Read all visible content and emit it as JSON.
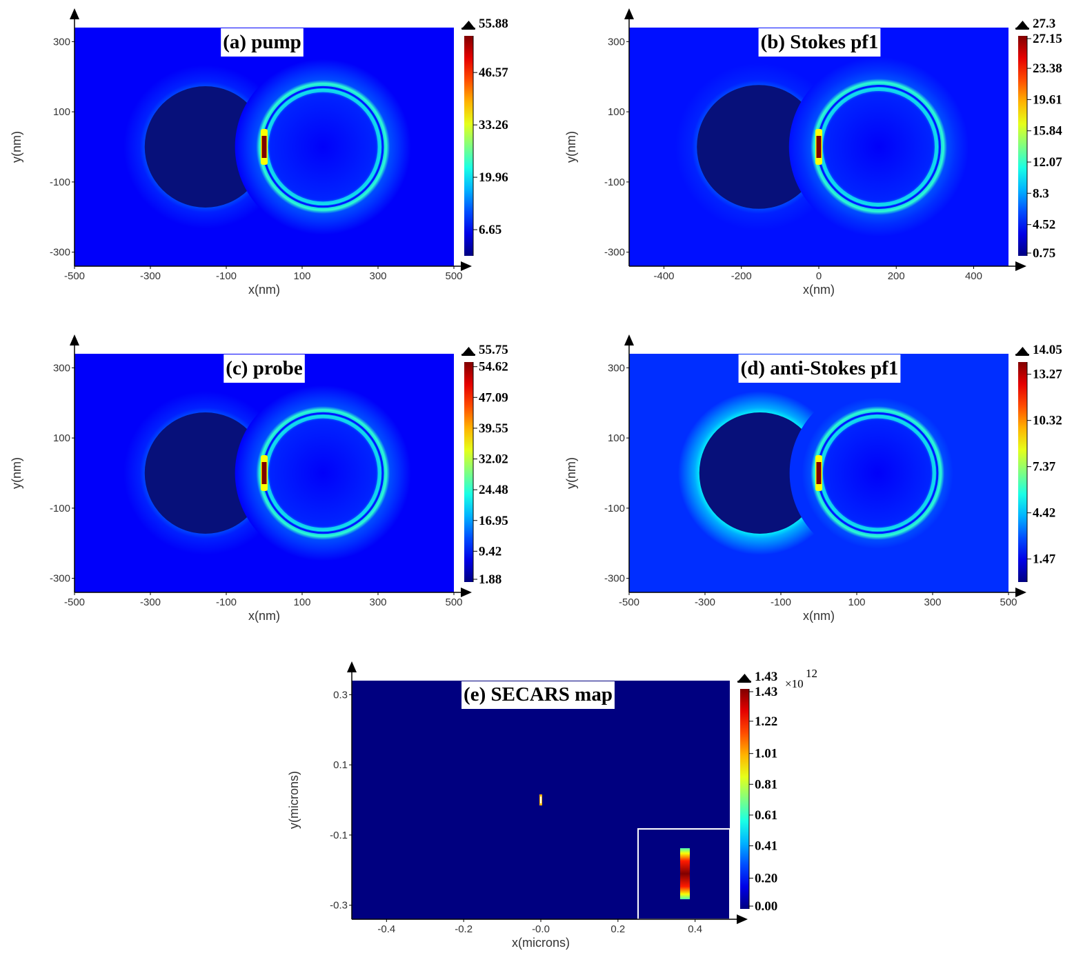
{
  "chart_data": [
    {
      "type": "heatmap",
      "title": "(a) pump",
      "xlabel": "x(nm)",
      "ylabel": "y(nm)",
      "x_ticks": [
        "-500",
        "-300",
        "-100",
        "100",
        "300",
        "500"
      ],
      "y_ticks": [
        "300",
        "100",
        "-100",
        "-300"
      ],
      "xlim": [
        -500,
        500
      ],
      "ylim": [
        -340,
        340
      ],
      "colorbar": {
        "max_label": "55.88",
        "ticks": [
          "46.57",
          "33.26",
          "19.96",
          "6.65"
        ],
        "min": 0,
        "max": 55.88
      },
      "background_level": 0.12,
      "features": [
        {
          "kind": "dark-disk",
          "cx": -155,
          "cy": 0,
          "r": 160
        },
        {
          "kind": "bright-ring",
          "cx": 155,
          "cy": 0,
          "r": 160
        },
        {
          "kind": "gap-hotspot",
          "x": 0,
          "y": 0
        }
      ]
    },
    {
      "type": "heatmap",
      "title": "(b) Stokes pf1",
      "xlabel": "x(nm)",
      "ylabel": "y(nm)",
      "x_ticks": [
        "-400",
        "-200",
        "0",
        "200",
        "400"
      ],
      "y_ticks": [
        "300",
        "100",
        "-100",
        "-300"
      ],
      "xlim": [
        -490,
        490
      ],
      "ylim": [
        -340,
        340
      ],
      "colorbar": {
        "max_label": "27.3",
        "ticks": [
          "27.15",
          "23.38",
          "19.61",
          "15.84",
          "12.07",
          "8.3",
          "4.52",
          "0.75"
        ],
        "min": 0.75,
        "max": 27.3
      },
      "background_level": 0.14,
      "features": [
        {
          "kind": "dark-disk",
          "cx": -155,
          "cy": 0,
          "r": 160
        },
        {
          "kind": "bright-ring",
          "cx": 155,
          "cy": 0,
          "r": 160
        },
        {
          "kind": "gap-hotspot",
          "x": 0,
          "y": 0
        }
      ]
    },
    {
      "type": "heatmap",
      "title": "(c) probe",
      "xlabel": "x(nm)",
      "ylabel": "y(nm)",
      "x_ticks": [
        "-500",
        "-300",
        "-100",
        "100",
        "300",
        "500"
      ],
      "y_ticks": [
        "300",
        "100",
        "-100",
        "-300"
      ],
      "xlim": [
        -500,
        500
      ],
      "ylim": [
        -340,
        340
      ],
      "colorbar": {
        "max_label": "55.75",
        "ticks": [
          "54.62",
          "47.09",
          "39.55",
          "32.02",
          "24.48",
          "16.95",
          "9.42",
          "1.88"
        ],
        "min": 1.88,
        "max": 55.75
      },
      "background_level": 0.12,
      "features": [
        {
          "kind": "dark-disk",
          "cx": -155,
          "cy": 0,
          "r": 160
        },
        {
          "kind": "bright-ring",
          "cx": 155,
          "cy": 0,
          "r": 160
        },
        {
          "kind": "gap-hotspot",
          "x": 0,
          "y": 0
        }
      ]
    },
    {
      "type": "heatmap",
      "title": "(d) anti-Stokes pf1",
      "xlabel": "x(nm)",
      "ylabel": "y(nm)",
      "x_ticks": [
        "-500",
        "-300",
        "-100",
        "100",
        "300",
        "500"
      ],
      "y_ticks": [
        "300",
        "100",
        "-100",
        "-300"
      ],
      "xlim": [
        -500,
        500
      ],
      "ylim": [
        -340,
        340
      ],
      "colorbar": {
        "max_label": "14.05",
        "ticks": [
          "13.27",
          "10.32",
          "7.37",
          "4.42",
          "1.47"
        ],
        "min": 0,
        "max": 14.05
      },
      "background_level": 0.17,
      "features": [
        {
          "kind": "dark-disk",
          "cx": -155,
          "cy": 0,
          "r": 160
        },
        {
          "kind": "bright-ring",
          "cx": 155,
          "cy": 0,
          "r": 160
        },
        {
          "kind": "gap-hotspot",
          "x": 0,
          "y": 0
        }
      ]
    },
    {
      "type": "heatmap",
      "title": "(e) SECARS map",
      "xlabel": "x(microns)",
      "ylabel": "y(microns)",
      "x_ticks": [
        "-0.4",
        "-0.2",
        "-0.0",
        "0.2",
        "0.4"
      ],
      "y_ticks": [
        "0.3",
        "0.1",
        "-0.1",
        "-0.3"
      ],
      "xlim": [
        -0.49,
        0.49
      ],
      "ylim": [
        -0.34,
        0.34
      ],
      "colorbar": {
        "max_label": "1.43",
        "exponent": "12",
        "ticks": [
          "1.43",
          "1.22",
          "1.01",
          "0.81",
          "0.61",
          "0.41",
          "0.20",
          "0.00"
        ],
        "min": 0,
        "max": 1.43
      },
      "background_level": 0.0,
      "features": [
        {
          "kind": "gap-hotspot",
          "x": 0,
          "y": 0
        }
      ],
      "inset": "zoomed view of the gap hotspot"
    }
  ]
}
